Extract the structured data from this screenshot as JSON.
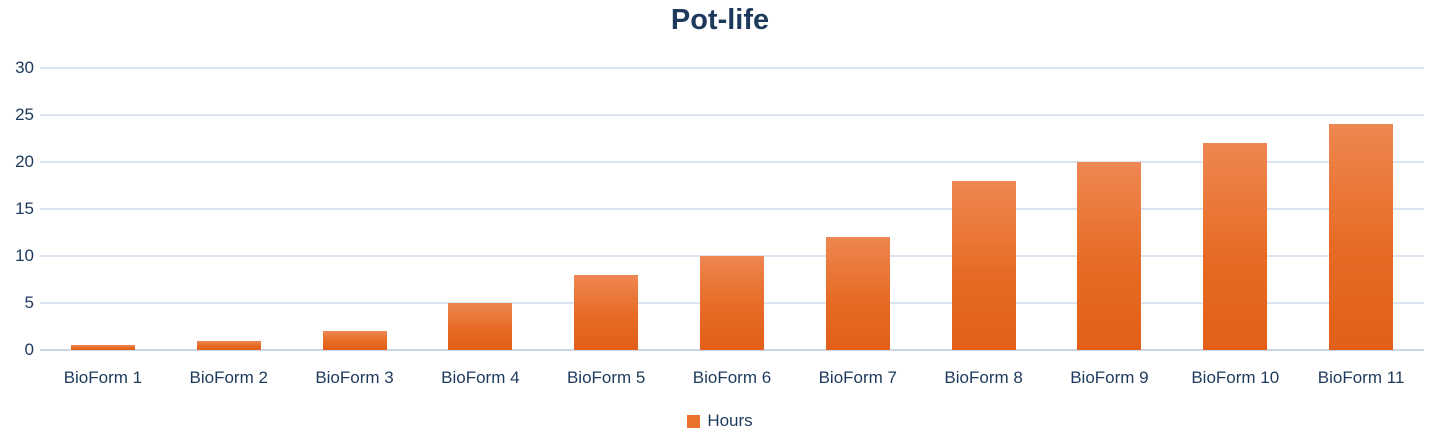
{
  "chart_data": {
    "type": "bar",
    "title": "Pot-life",
    "categories": [
      "BioForm 1",
      "BioForm 2",
      "BioForm 3",
      "BioForm 4",
      "BioForm 5",
      "BioForm 6",
      "BioForm 7",
      "BioForm 8",
      "BioForm 9",
      "BioForm 10",
      "BioForm 11"
    ],
    "values": [
      0.5,
      1,
      2,
      5,
      8,
      10,
      12,
      18,
      20,
      22,
      24
    ],
    "series_name": "Hours",
    "legend": [
      "Hours"
    ],
    "legend_position": "bottom-center",
    "xlabel": "",
    "ylabel": "",
    "ylim": [
      0,
      30
    ],
    "yticks": [
      0,
      5,
      10,
      15,
      20,
      25,
      30
    ],
    "grid": "horizontal",
    "colors": {
      "bar_gradient_top": "#ee8751",
      "bar_gradient_bottom": "#e25f18",
      "legend_swatch": "#e9732d",
      "text": "#1d3a5c",
      "gridline": "#dbe5f1"
    }
  }
}
